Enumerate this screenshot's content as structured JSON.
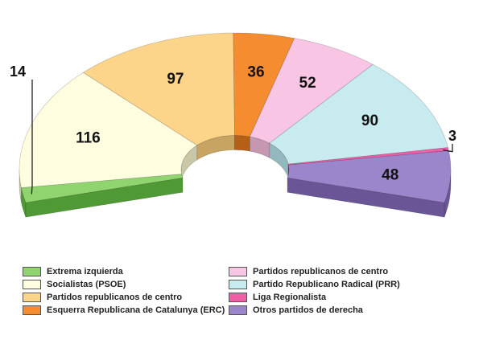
{
  "chart_data": {
    "type": "pie",
    "variant": "3d-parliament-hemicycle",
    "title": "",
    "total": 456,
    "series": [
      {
        "name": "Extrema izquierda",
        "value": 14,
        "label": "14",
        "color": "#8fd46e",
        "side": "#4f9a35"
      },
      {
        "name": "Socialistas (PSOE)",
        "value": 116,
        "label": "116",
        "color": "#fefde0",
        "side": "#c9c7a6"
      },
      {
        "name": "Partidos republicanos de centro",
        "value": 97,
        "label": "97",
        "color": "#fcd58a",
        "side": "#c8a462"
      },
      {
        "name": "Esquerra Republicana de Catalunya (ERC)",
        "value": 36,
        "label": "36",
        "color": "#f58c2f",
        "side": "#b65f17"
      },
      {
        "name": "Partidos republicanos de centro",
        "value": 52,
        "label": "52",
        "color": "#f8c6e4",
        "side": "#c597b1"
      },
      {
        "name": "Partido Republicano Radical (PRR)",
        "value": 90,
        "label": "90",
        "color": "#c8ebef",
        "side": "#93b8bd"
      },
      {
        "name": "Liga Regionalista",
        "value": 3,
        "label": "3",
        "color": "#ee5fa8",
        "side": "#b13a78"
      },
      {
        "name": "Otros partidos de derecha",
        "value": 48,
        "label": "48",
        "color": "#9b86cc",
        "side": "#6a5696"
      }
    ]
  },
  "legend": {
    "left": [
      {
        "label": "Extrema izquierda",
        "color": "#8fd46e"
      },
      {
        "label": "Socialistas (PSOE)",
        "color": "#fefde0"
      },
      {
        "label": "Partidos republicanos de centro",
        "color": "#fcd58a"
      },
      {
        "label": "Esquerra Republicana de Catalunya (ERC)",
        "color": "#f58c2f"
      }
    ],
    "right": [
      {
        "label": "Partidos republicanos de centro",
        "color": "#f8c6e4"
      },
      {
        "label": "Partido Republicano Radical (PRR)",
        "color": "#c8ebef"
      },
      {
        "label": "Liga Regionalista",
        "color": "#ee5fa8"
      },
      {
        "label": "Otros partidos de derecha",
        "color": "#9b86cc"
      }
    ]
  }
}
